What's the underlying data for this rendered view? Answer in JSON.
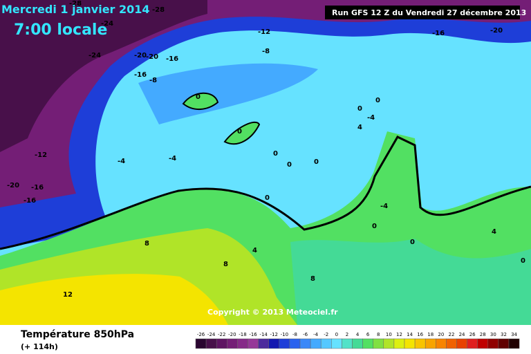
{
  "header": {
    "date": "Mercredi 1 janvier 2014",
    "time": "7:00 locale",
    "run": "Run GFS 12 Z du Vendredi 27 décembre 2013"
  },
  "map": {
    "contour_labels": [
      -28,
      -28,
      -24,
      -24,
      -20,
      -20,
      -16,
      -16,
      -8,
      -12,
      -8,
      -16,
      -20,
      0,
      0,
      -12,
      -4,
      -4,
      0,
      0,
      0,
      -4,
      4,
      0,
      0,
      -20,
      -16,
      -16,
      0,
      -4,
      0,
      0,
      4,
      8,
      4,
      8,
      8,
      12,
      0
    ],
    "copyright": "Copyright © 2013 Meteociel.fr"
  },
  "footer": {
    "title": "Température 850hPa",
    "lead": "(+ 114h)"
  },
  "colorbar": {
    "ticks": [
      -26,
      -24,
      -22,
      -20,
      -18,
      -16,
      -14,
      -12,
      -10,
      -8,
      -6,
      -4,
      -2,
      0,
      2,
      4,
      6,
      8,
      10,
      12,
      14,
      16,
      18,
      20,
      22,
      24,
      26,
      28,
      30,
      32,
      34
    ],
    "colors": [
      "#2a0630",
      "#48104a",
      "#5e1462",
      "#741e76",
      "#862a88",
      "#963898",
      "#4c2a9c",
      "#1418b0",
      "#1e3ed8",
      "#2a62ee",
      "#3a88f8",
      "#44aaff",
      "#56c8ff",
      "#66e2ff",
      "#52e2c8",
      "#44da96",
      "#52e062",
      "#80e042",
      "#b0e428",
      "#dcf010",
      "#f4e400",
      "#f8c400",
      "#f8a400",
      "#f88400",
      "#f06200",
      "#e84200",
      "#e02020",
      "#c00000",
      "#900000",
      "#600000",
      "#200000"
    ]
  }
}
